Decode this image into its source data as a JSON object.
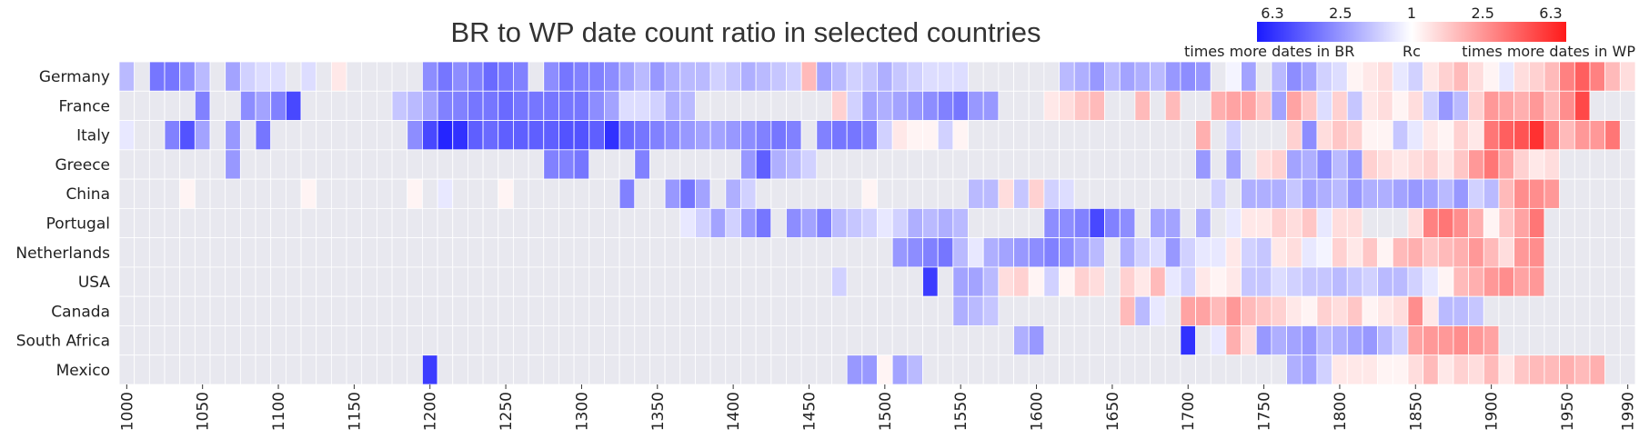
{
  "chart_data": {
    "type": "heatmap",
    "title": "BR to WP date count ratio in selected countries",
    "rows": [
      "Germany",
      "France",
      "Italy",
      "Greece",
      "China",
      "Portugal",
      "Netherlands",
      "USA",
      "Canada",
      "South Africa",
      "Mexico"
    ],
    "x_start": 1000,
    "x_step": 10,
    "x_ticks": [
      1000,
      1050,
      1100,
      1150,
      1200,
      1250,
      1300,
      1350,
      1400,
      1450,
      1500,
      1550,
      1600,
      1650,
      1700,
      1750,
      1800,
      1850,
      1900,
      1950,
      1990
    ],
    "encoding_note": "values are signed log ratios: negative = times more dates in BR (blue), positive = times more dates in WP (red), null = no data (grey)",
    "values": [
      [
        -0.3,
        null,
        -0.6,
        -0.6,
        -0.5,
        -0.3,
        null,
        -0.4,
        -0.2,
        -0.15,
        -0.15,
        null,
        -0.15,
        null,
        0.1,
        null,
        null,
        null,
        null,
        null,
        -0.5,
        -0.6,
        -0.5,
        -0.55,
        -0.65,
        -0.6,
        -0.55,
        null,
        -0.5,
        -0.6,
        -0.55,
        -0.55,
        -0.5,
        -0.4,
        -0.3,
        -0.45,
        -0.35,
        -0.3,
        -0.3,
        -0.2,
        -0.25,
        -0.35,
        -0.3,
        -0.25,
        -0.2,
        0.3,
        -0.4,
        -0.3,
        -0.2,
        -0.25,
        -0.35,
        -0.25,
        -0.2,
        -0.15,
        -0.15,
        -0.15,
        null,
        null,
        null,
        null,
        null,
        null,
        -0.3,
        -0.35,
        -0.45,
        -0.3,
        -0.4,
        -0.35,
        -0.3,
        -0.45,
        -0.5,
        -0.45,
        null,
        -0.05,
        -0.4,
        null,
        -0.3,
        -0.5,
        -0.4,
        -0.2,
        -0.15,
        0.05,
        0.1,
        0.15,
        -0.1,
        -0.2,
        0.1,
        0.2,
        0.3,
        0.15,
        0.05,
        -0.1,
        0.15,
        0.2,
        0.3,
        0.55,
        0.7,
        0.55,
        0.3,
        0.15
      ],
      [
        null,
        null,
        null,
        null,
        null,
        -0.55,
        null,
        null,
        -0.5,
        -0.4,
        -0.55,
        -0.8,
        null,
        null,
        null,
        null,
        null,
        null,
        -0.25,
        -0.3,
        -0.4,
        -0.55,
        -0.55,
        -0.6,
        -0.6,
        -0.65,
        -0.6,
        -0.6,
        -0.6,
        -0.6,
        -0.6,
        -0.5,
        -0.4,
        -0.15,
        -0.15,
        -0.2,
        -0.35,
        -0.3,
        null,
        null,
        null,
        null,
        null,
        null,
        null,
        null,
        null,
        0.2,
        -0.2,
        -0.4,
        -0.35,
        -0.4,
        -0.45,
        -0.5,
        -0.55,
        -0.6,
        -0.45,
        -0.45,
        null,
        null,
        null,
        0.1,
        0.15,
        0.25,
        0.3,
        null,
        null,
        0.3,
        null,
        0.3,
        null,
        null,
        0.35,
        0.4,
        0.4,
        0.25,
        -0.4,
        0.4,
        0.25,
        -0.15,
        0.2,
        -0.25,
        0.1,
        0.15,
        0.05,
        0.15,
        -0.2,
        -0.45,
        -0.3,
        0.2,
        0.45,
        0.4,
        0.35,
        0.45,
        0.3,
        0.5,
        0.8
      ],
      [
        -0.1,
        null,
        null,
        -0.55,
        -0.75,
        -0.4,
        null,
        -0.45,
        null,
        -0.6,
        null,
        null,
        null,
        null,
        null,
        null,
        null,
        null,
        null,
        -0.5,
        -0.8,
        -0.95,
        -0.9,
        -0.7,
        -0.65,
        -0.7,
        -0.7,
        -0.7,
        -0.7,
        -0.75,
        -0.75,
        -0.7,
        -0.9,
        -0.65,
        -0.6,
        -0.55,
        -0.5,
        -0.45,
        -0.4,
        -0.4,
        -0.45,
        -0.5,
        -0.55,
        -0.6,
        -0.55,
        null,
        -0.55,
        -0.6,
        -0.6,
        -0.55,
        -0.2,
        0.1,
        0.05,
        0.05,
        -0.2,
        0.05,
        null,
        null,
        null,
        null,
        null,
        null,
        null,
        null,
        null,
        null,
        null,
        null,
        null,
        null,
        null,
        0.35,
        null,
        -0.2,
        null,
        null,
        null,
        0.2,
        -0.5,
        0.15,
        0.25,
        0.2,
        0.05,
        0.05,
        -0.25,
        -0.1,
        0.1,
        0.05,
        0.2,
        0.1,
        0.6,
        0.7,
        0.75,
        0.9,
        0.55,
        0.3,
        0.45,
        0.45,
        0.6
      ],
      [
        null,
        null,
        null,
        null,
        null,
        null,
        null,
        -0.45,
        null,
        null,
        null,
        null,
        null,
        null,
        null,
        null,
        null,
        null,
        null,
        null,
        null,
        null,
        null,
        null,
        null,
        null,
        null,
        null,
        -0.55,
        -0.55,
        -0.6,
        null,
        null,
        null,
        -0.55,
        null,
        null,
        null,
        null,
        null,
        null,
        -0.45,
        -0.7,
        -0.35,
        -0.3,
        -0.2,
        null,
        null,
        null,
        null,
        null,
        null,
        null,
        null,
        null,
        null,
        null,
        null,
        null,
        null,
        null,
        null,
        null,
        null,
        null,
        null,
        null,
        null,
        null,
        null,
        null,
        -0.45,
        null,
        -0.4,
        null,
        0.15,
        0.2,
        -0.4,
        -0.35,
        -0.5,
        -0.3,
        -0.45,
        0.2,
        0.15,
        0.1,
        0.15,
        0.2,
        0.1,
        0.25,
        0.45,
        0.6,
        0.4,
        0.2,
        0.1,
        0.15
      ],
      [
        null,
        null,
        null,
        null,
        0.05,
        null,
        null,
        null,
        null,
        null,
        null,
        null,
        0.05,
        null,
        null,
        null,
        null,
        null,
        null,
        0.05,
        null,
        -0.1,
        null,
        null,
        null,
        0.05,
        null,
        null,
        null,
        null,
        null,
        null,
        null,
        -0.55,
        null,
        null,
        -0.45,
        -0.6,
        -0.4,
        null,
        -0.35,
        -0.2,
        null,
        null,
        null,
        null,
        null,
        null,
        null,
        0.05,
        null,
        null,
        null,
        null,
        null,
        null,
        -0.3,
        -0.3,
        0.15,
        -0.25,
        0.2,
        -0.2,
        -0.15,
        null,
        null,
        null,
        null,
        null,
        null,
        null,
        null,
        null,
        -0.2,
        null,
        -0.35,
        -0.35,
        -0.35,
        -0.25,
        -0.4,
        -0.35,
        -0.3,
        -0.45,
        -0.35,
        -0.35,
        -0.4,
        -0.45,
        -0.4,
        -0.3,
        -0.45,
        -0.2,
        -0.3,
        0.3,
        0.5,
        0.5,
        0.45
      ],
      [
        null,
        null,
        null,
        null,
        null,
        null,
        null,
        null,
        null,
        null,
        null,
        null,
        null,
        null,
        null,
        null,
        null,
        null,
        null,
        null,
        null,
        null,
        null,
        null,
        null,
        null,
        null,
        null,
        null,
        null,
        null,
        null,
        null,
        null,
        null,
        null,
        null,
        -0.1,
        -0.2,
        -0.4,
        -0.2,
        -0.45,
        -0.6,
        null,
        -0.5,
        -0.4,
        -0.55,
        -0.3,
        -0.25,
        -0.2,
        -0.1,
        -0.2,
        -0.35,
        -0.3,
        -0.35,
        -0.3,
        null,
        null,
        null,
        null,
        null,
        -0.5,
        -0.5,
        -0.55,
        -0.8,
        -0.55,
        -0.5,
        null,
        -0.4,
        -0.4,
        null,
        -0.35,
        null,
        -0.1,
        0.1,
        0.1,
        0.2,
        0.15,
        0.25,
        -0.1,
        0.15,
        0.15,
        null,
        null,
        null,
        0.15,
        0.55,
        0.6,
        0.5,
        0.35,
        0.05,
        0.25,
        0.4,
        0.6
      ],
      [
        null,
        null,
        null,
        null,
        null,
        null,
        null,
        null,
        null,
        null,
        null,
        null,
        null,
        null,
        null,
        null,
        null,
        null,
        null,
        null,
        null,
        null,
        null,
        null,
        null,
        null,
        null,
        null,
        null,
        null,
        null,
        null,
        null,
        null,
        null,
        null,
        null,
        null,
        null,
        null,
        null,
        null,
        null,
        null,
        null,
        null,
        null,
        null,
        null,
        null,
        null,
        -0.45,
        -0.5,
        -0.55,
        -0.6,
        -0.3,
        -0.1,
        -0.35,
        -0.4,
        -0.45,
        -0.5,
        -0.55,
        -0.5,
        -0.4,
        -0.3,
        null,
        -0.35,
        -0.2,
        -0.15,
        -0.45,
        -0.2,
        -0.1,
        -0.1,
        0.1,
        -0.2,
        -0.25,
        0.1,
        0.15,
        -0.1,
        -0.05,
        0.2,
        0.1,
        0.25,
        0.05,
        0.3,
        0.35,
        0.25,
        0.3,
        0.35,
        0.45,
        0.3,
        0.15,
        0.45,
        0.5
      ],
      [
        null,
        null,
        null,
        null,
        null,
        null,
        null,
        null,
        null,
        null,
        null,
        null,
        null,
        null,
        null,
        null,
        null,
        null,
        null,
        null,
        null,
        null,
        null,
        null,
        null,
        null,
        null,
        null,
        null,
        null,
        null,
        null,
        null,
        null,
        null,
        null,
        null,
        null,
        null,
        null,
        null,
        null,
        null,
        null,
        null,
        null,
        null,
        -0.2,
        null,
        null,
        null,
        null,
        null,
        -0.85,
        null,
        -0.4,
        -0.4,
        -0.3,
        0.15,
        0.2,
        0.05,
        -0.2,
        0.05,
        0.2,
        0.15,
        null,
        0.2,
        0.1,
        0.3,
        -0.1,
        -0.2,
        0.1,
        0.05,
        0.1,
        -0.25,
        -0.25,
        -0.15,
        -0.2,
        -0.25,
        -0.25,
        -0.3,
        -0.25,
        -0.2,
        -0.3,
        -0.3,
        -0.2,
        -0.1,
        0.05,
        0.3,
        0.35,
        0.45,
        0.5,
        0.4,
        0.45
      ],
      [
        null,
        null,
        null,
        null,
        null,
        null,
        null,
        null,
        null,
        null,
        null,
        null,
        null,
        null,
        null,
        null,
        null,
        null,
        null,
        null,
        null,
        null,
        null,
        null,
        null,
        null,
        null,
        null,
        null,
        null,
        null,
        null,
        null,
        null,
        null,
        null,
        null,
        null,
        null,
        null,
        null,
        null,
        null,
        null,
        null,
        null,
        null,
        null,
        null,
        null,
        null,
        null,
        null,
        null,
        null,
        -0.35,
        -0.3,
        -0.25,
        null,
        null,
        null,
        null,
        null,
        null,
        null,
        null,
        0.3,
        -0.3,
        -0.1,
        null,
        0.4,
        0.4,
        0.3,
        0.45,
        0.3,
        0.25,
        0.2,
        0.1,
        0.05,
        0.2,
        0.15,
        0.25,
        0.05,
        0.1,
        0.15,
        0.5,
        0.1,
        -0.3,
        -0.3,
        -0.25
      ],
      [
        null,
        null,
        null,
        null,
        null,
        null,
        null,
        null,
        null,
        null,
        null,
        null,
        null,
        null,
        null,
        null,
        null,
        null,
        null,
        null,
        null,
        null,
        null,
        null,
        null,
        null,
        null,
        null,
        null,
        null,
        null,
        null,
        null,
        null,
        null,
        null,
        null,
        null,
        null,
        null,
        null,
        null,
        null,
        null,
        null,
        null,
        null,
        null,
        null,
        null,
        null,
        null,
        null,
        null,
        null,
        null,
        null,
        null,
        null,
        -0.35,
        -0.45,
        null,
        null,
        null,
        null,
        null,
        null,
        null,
        null,
        null,
        -0.9,
        null,
        -0.1,
        0.35,
        0.15,
        -0.45,
        -0.35,
        -0.4,
        -0.45,
        -0.3,
        -0.35,
        -0.4,
        -0.45,
        -0.3,
        -0.2,
        0.4,
        0.45,
        0.45,
        0.5,
        0.45,
        0.4
      ],
      [
        null,
        null,
        null,
        null,
        null,
        null,
        null,
        null,
        null,
        null,
        null,
        null,
        null,
        null,
        null,
        null,
        null,
        null,
        null,
        null,
        -0.85,
        null,
        null,
        null,
        null,
        null,
        null,
        null,
        null,
        null,
        null,
        null,
        null,
        null,
        null,
        null,
        null,
        null,
        null,
        null,
        null,
        null,
        null,
        null,
        null,
        null,
        null,
        null,
        -0.45,
        -0.45,
        0.05,
        -0.4,
        -0.3,
        null,
        null,
        null,
        null,
        null,
        null,
        null,
        null,
        null,
        null,
        null,
        null,
        null,
        null,
        null,
        null,
        null,
        null,
        null,
        null,
        null,
        null,
        null,
        null,
        -0.35,
        -0.4,
        -0.2,
        0.1,
        0.1,
        0.1,
        0.05,
        0.05,
        0.15,
        0.3,
        0.1,
        0.2,
        0.15,
        0.3,
        0.1,
        0.25,
        0.3,
        0.3,
        0.35,
        0.3,
        0.35
      ]
    ],
    "colorbar": {
      "tick_labels": [
        "6.3",
        "2.5",
        "1",
        "2.5",
        "6.3"
      ],
      "left_label": "times more dates in BR",
      "center_label": "Rc",
      "right_label": "times more dates in WP",
      "neg_color": "#1a1aff",
      "pos_color": "#ff1a1a",
      "null_color": "#e8e8ef"
    },
    "grid": true
  }
}
